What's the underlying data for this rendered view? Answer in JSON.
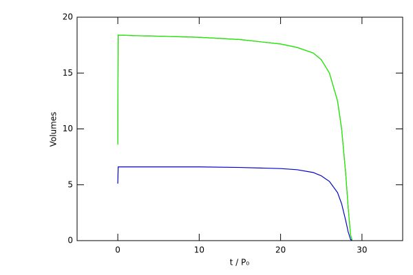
{
  "chart_data": {
    "type": "line",
    "xlabel": "t / P₀",
    "ylabel": "Volumes",
    "x": [
      0,
      0.05,
      2,
      5,
      10,
      15,
      20,
      22,
      24,
      25,
      26,
      27,
      27.5,
      28,
      28.3,
      28.6,
      28.8
    ],
    "series": [
      {
        "color": "#ff0000",
        "values": [
          8.6,
          18.4,
          18.35,
          18.3,
          18.2,
          18.0,
          17.6,
          17.3,
          16.8,
          16.2,
          15.0,
          12.5,
          10.0,
          6.0,
          3.0,
          0.5,
          0
        ]
      },
      {
        "color": "#00ff00",
        "values": [
          8.6,
          18.4,
          18.35,
          18.3,
          18.2,
          18.0,
          17.6,
          17.3,
          16.8,
          16.2,
          15.0,
          12.5,
          10.0,
          6.0,
          3.0,
          0.5,
          0
        ]
      },
      {
        "color": "#0000cc",
        "values": [
          5.1,
          6.6,
          6.6,
          6.6,
          6.6,
          6.55,
          6.45,
          6.35,
          6.1,
          5.8,
          5.3,
          4.3,
          3.3,
          1.8,
          0.8,
          0.1,
          0
        ]
      }
    ],
    "xlim": [
      -5,
      35
    ],
    "xticks": [
      0,
      10,
      20,
      30
    ],
    "ylim": [
      0,
      20
    ],
    "yticks": [
      0,
      5,
      10,
      15,
      20
    ]
  }
}
